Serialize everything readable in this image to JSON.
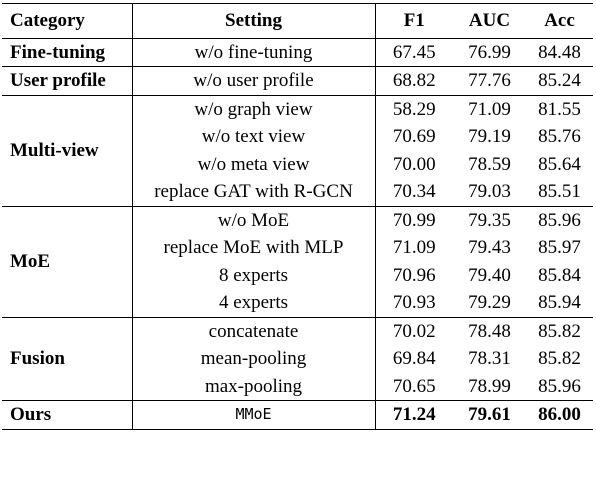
{
  "table": {
    "headers": {
      "category": "Category",
      "setting": "Setting",
      "f1": "F1",
      "auc": "AUC",
      "acc": "Acc"
    },
    "groups": [
      {
        "category": "Fine-tuning",
        "rows": [
          {
            "setting": "w/o fine-tuning",
            "f1": "67.45",
            "auc": "76.99",
            "acc": "84.48"
          }
        ]
      },
      {
        "category": "User profile",
        "rows": [
          {
            "setting": "w/o user profile",
            "f1": "68.82",
            "auc": "77.76",
            "acc": "85.24"
          }
        ]
      },
      {
        "category": "Multi-view",
        "rows": [
          {
            "setting": "w/o graph view",
            "f1": "58.29",
            "auc": "71.09",
            "acc": "81.55"
          },
          {
            "setting": "w/o text view",
            "f1": "70.69",
            "auc": "79.19",
            "acc": "85.76"
          },
          {
            "setting": "w/o meta view",
            "f1": "70.00",
            "auc": "78.59",
            "acc": "85.64"
          },
          {
            "setting": "replace GAT with R-GCN",
            "f1": "70.34",
            "auc": "79.03",
            "acc": "85.51"
          }
        ]
      },
      {
        "category": "MoE",
        "rows": [
          {
            "setting": "w/o MoE",
            "f1": "70.99",
            "auc": "79.35",
            "acc": "85.96"
          },
          {
            "setting": "replace MoE with MLP",
            "f1": "71.09",
            "auc": "79.43",
            "acc": "85.97"
          },
          {
            "setting": "8 experts",
            "f1": "70.96",
            "auc": "79.40",
            "acc": "85.84"
          },
          {
            "setting": "4 experts",
            "f1": "70.93",
            "auc": "79.29",
            "acc": "85.94"
          }
        ]
      },
      {
        "category": "Fusion",
        "rows": [
          {
            "setting": "concatenate",
            "f1": "70.02",
            "auc": "78.48",
            "acc": "85.82"
          },
          {
            "setting": "mean-pooling",
            "f1": "69.84",
            "auc": "78.31",
            "acc": "85.82"
          },
          {
            "setting": "max-pooling",
            "f1": "70.65",
            "auc": "78.99",
            "acc": "85.96"
          }
        ]
      }
    ],
    "ours": {
      "category": "Ours",
      "setting": "MMoE",
      "f1": "71.24",
      "auc": "79.61",
      "acc": "86.00"
    }
  }
}
